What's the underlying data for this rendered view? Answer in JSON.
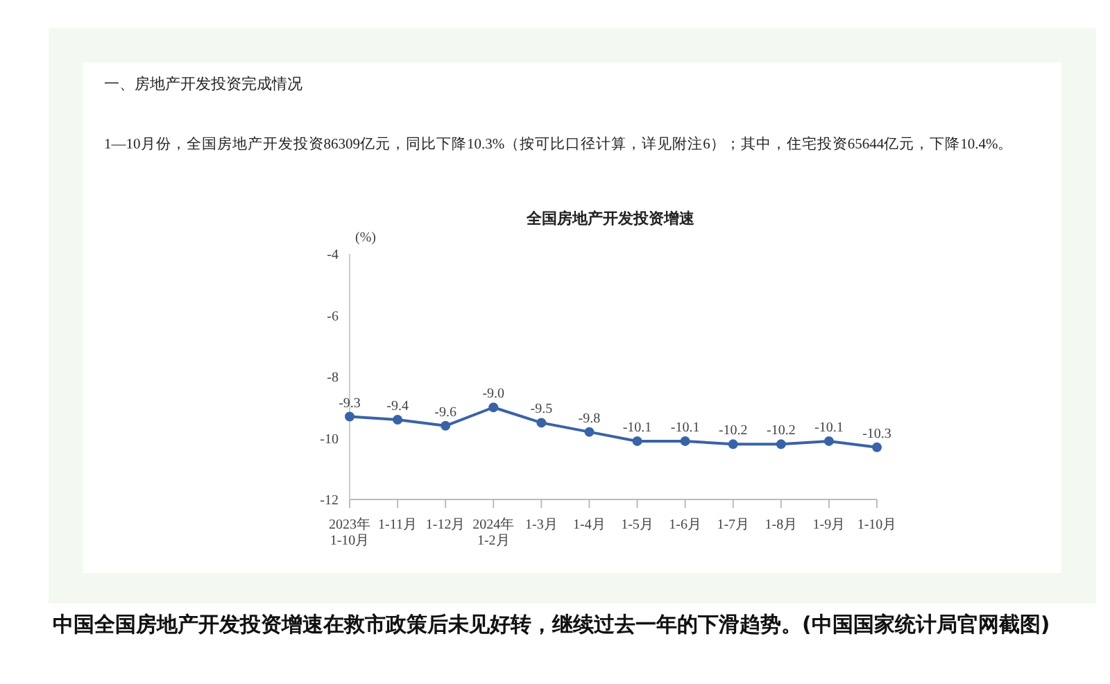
{
  "chart_data": {
    "type": "line",
    "title": "全国房地产开发投资增速",
    "ylabel": "(%)",
    "annotations": [
      "一、房地产开发投资完成情况",
      "1—10月份，全国房地产开发投资86309亿元，同比下降10.3%（按可比口径计算，详见附注6）；其中，住宅投资65644亿元，下降10.4%。",
      "中国全国房地产开发投资增速在救市政策后未见好转，继续过去一年的下滑趋势。(中国国家统计局官网截图)"
    ],
    "categories": [
      "2023年\n1-10月",
      "1-11月",
      "1-12月",
      "2024年\n1-2月",
      "1-3月",
      "1-4月",
      "1-5月",
      "1-6月",
      "1-7月",
      "1-8月",
      "1-9月",
      "1-10月"
    ],
    "series": [
      {
        "color": "#3a62a7",
        "values": [
          -9.3,
          -9.4,
          -9.6,
          -9.0,
          -9.5,
          -9.8,
          -10.1,
          -10.1,
          -10.2,
          -10.2,
          -10.1,
          -10.3
        ],
        "value_labels": [
          "-9.3",
          "-9.4",
          "-9.6",
          "-9.0",
          "-9.5",
          "-9.8",
          "-10.1",
          "-10.1",
          "-10.2",
          "-10.2",
          "-10.1",
          "-10.3"
        ]
      }
    ],
    "ylim": [
      -12,
      -4
    ],
    "yticks": [
      -4,
      -6,
      -8,
      -10,
      -12
    ],
    "marker": "circle",
    "grid": false,
    "legend": false
  }
}
